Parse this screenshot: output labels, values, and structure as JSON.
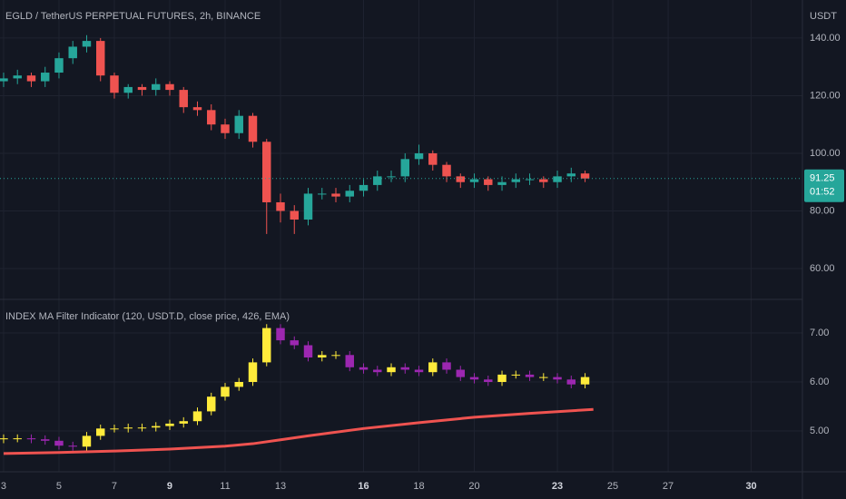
{
  "chart_data": [
    {
      "type": "candlestick",
      "title": "EGLD / TetherUS PERPETUAL FUTURES, 2h, BINANCE",
      "y_label": "USDT",
      "x": [
        3,
        3.5,
        4,
        4.5,
        5,
        5.5,
        6,
        6.5,
        7,
        7.5,
        8,
        8.5,
        9,
        9.5,
        10,
        10.5,
        11,
        11.5,
        12,
        12.5,
        13,
        13.5,
        14,
        14.5,
        15,
        15.5,
        16,
        16.5,
        17,
        17.5,
        18,
        18.5,
        19,
        19.5,
        20,
        20.5,
        21,
        21.5,
        22,
        22.5,
        23,
        23.5,
        24
      ],
      "open": [
        125,
        126,
        127,
        125,
        128,
        133,
        137,
        139,
        127,
        121,
        123,
        122,
        124,
        122,
        116,
        115,
        110,
        107,
        113,
        104,
        83,
        80,
        77,
        86,
        86,
        85,
        87,
        89,
        92,
        92,
        98,
        100,
        96,
        92,
        90,
        91,
        89,
        90,
        91,
        91,
        90,
        92,
        93
      ],
      "high": [
        128,
        129,
        128,
        130,
        135,
        139,
        141,
        140,
        128,
        124,
        124,
        126,
        125,
        123,
        118,
        117,
        112,
        115,
        114,
        105,
        86,
        82,
        88,
        88,
        88,
        89,
        91,
        94,
        94,
        100,
        103,
        101,
        97,
        93,
        93,
        92,
        92,
        93,
        93,
        92,
        94,
        95,
        94
      ],
      "low": [
        123,
        124,
        123,
        123,
        126,
        131,
        135,
        125,
        119,
        119,
        120,
        120,
        120,
        114,
        113,
        108,
        105,
        105,
        102,
        72,
        76,
        72,
        75,
        84,
        83,
        83,
        85,
        87,
        90,
        90,
        96,
        94,
        90,
        88,
        88,
        87,
        87,
        88,
        89,
        88,
        88,
        90,
        90
      ],
      "close": [
        126,
        127,
        125,
        128,
        133,
        137,
        139,
        127,
        121,
        123,
        122,
        124,
        122,
        116,
        115,
        110,
        107,
        113,
        104,
        83,
        80,
        77,
        86,
        86,
        85,
        87,
        89,
        92,
        92,
        98,
        100,
        96,
        92,
        90,
        91,
        89,
        90,
        91,
        91,
        90,
        92,
        93,
        91.25
      ],
      "up_color": "#26a69a",
      "down_color": "#ef5350",
      "last_price": 91.25,
      "countdown": "01:52",
      "last_color": "#26a69a",
      "xlim": [
        2.87,
        31.85
      ],
      "ylim": [
        49.3,
        153.2
      ],
      "yticks": [
        {
          "value": 60,
          "label": "60.00"
        },
        {
          "value": 80,
          "label": "80.00"
        },
        {
          "value": 100,
          "label": "100.00"
        },
        {
          "value": 120,
          "label": "120.00"
        },
        {
          "value": 140,
          "label": "140.00"
        }
      ],
      "grid": true
    },
    {
      "type": "candlestick",
      "title": "INDEX MA Filter Indicator (120, USDT.D, close price, 426, EMA)",
      "x": [
        3,
        3.5,
        4,
        4.5,
        5,
        5.5,
        6,
        6.5,
        7,
        7.5,
        8,
        8.5,
        9,
        9.5,
        10,
        10.5,
        11,
        11.5,
        12,
        12.5,
        13,
        13.5,
        14,
        14.5,
        15,
        15.5,
        16,
        16.5,
        17,
        17.5,
        18,
        18.5,
        19,
        19.5,
        20,
        20.5,
        21,
        21.5,
        22,
        22.5,
        23,
        23.5,
        24
      ],
      "open": [
        4.83,
        4.85,
        4.85,
        4.83,
        4.8,
        4.7,
        4.68,
        4.9,
        5.05,
        5.05,
        5.07,
        5.07,
        5.1,
        5.15,
        5.2,
        5.4,
        5.7,
        5.9,
        6.0,
        6.4,
        7.1,
        6.85,
        6.75,
        6.5,
        6.55,
        6.55,
        6.3,
        6.25,
        6.2,
        6.3,
        6.25,
        6.2,
        6.4,
        6.25,
        6.1,
        6.05,
        6.0,
        6.15,
        6.15,
        6.1,
        6.1,
        6.05,
        5.95
      ],
      "high": [
        4.93,
        4.93,
        4.93,
        4.91,
        4.88,
        4.78,
        4.98,
        5.13,
        5.13,
        5.15,
        5.15,
        5.18,
        5.23,
        5.28,
        5.48,
        5.78,
        5.98,
        6.08,
        6.48,
        7.18,
        7.18,
        6.93,
        6.83,
        6.63,
        6.63,
        6.63,
        6.38,
        6.33,
        6.38,
        6.38,
        6.33,
        6.48,
        6.48,
        6.33,
        6.18,
        6.13,
        6.23,
        6.23,
        6.23,
        6.18,
        6.18,
        6.13,
        6.18
      ],
      "low": [
        4.75,
        4.77,
        4.75,
        4.72,
        4.62,
        4.6,
        4.6,
        4.82,
        4.97,
        4.97,
        4.99,
        4.99,
        5.02,
        5.07,
        5.12,
        5.32,
        5.62,
        5.82,
        5.92,
        6.32,
        6.77,
        6.67,
        6.42,
        6.42,
        6.47,
        6.22,
        6.17,
        6.12,
        6.12,
        6.17,
        6.12,
        6.12,
        6.17,
        6.02,
        5.97,
        5.92,
        5.92,
        6.07,
        6.02,
        6.02,
        5.97,
        5.87,
        5.87
      ],
      "close": [
        4.85,
        4.85,
        4.83,
        4.8,
        4.7,
        4.68,
        4.9,
        5.05,
        5.05,
        5.07,
        5.07,
        5.1,
        5.15,
        5.2,
        5.4,
        5.7,
        5.9,
        6.0,
        6.4,
        7.1,
        6.85,
        6.75,
        6.5,
        6.55,
        6.55,
        6.3,
        6.25,
        6.2,
        6.3,
        6.25,
        6.2,
        6.4,
        6.25,
        6.1,
        6.05,
        6.0,
        6.15,
        6.15,
        6.1,
        6.1,
        6.05,
        5.95,
        6.1
      ],
      "up_color": "#ffeb3b",
      "down_color": "#9c27b0",
      "line": {
        "x": [
          3,
          5,
          7,
          9,
          11,
          12,
          13,
          14,
          16,
          18,
          20,
          22,
          24.3
        ],
        "values": [
          4.54,
          4.56,
          4.59,
          4.63,
          4.69,
          4.74,
          4.82,
          4.9,
          5.05,
          5.17,
          5.28,
          5.36,
          5.44
        ],
        "color": "#ef5350"
      },
      "xlim": [
        2.87,
        31.85
      ],
      "ylim": [
        4.167,
        7.685
      ],
      "yticks": [
        {
          "value": 5,
          "label": "5.00"
        },
        {
          "value": 6,
          "label": "6.00"
        },
        {
          "value": 7,
          "label": "7.00"
        }
      ],
      "xticks": [
        3,
        5,
        7,
        9,
        11,
        13,
        16,
        18,
        20,
        23,
        25,
        27,
        30
      ],
      "bold_xticks": [
        9,
        16,
        23,
        30
      ],
      "grid": true
    }
  ]
}
